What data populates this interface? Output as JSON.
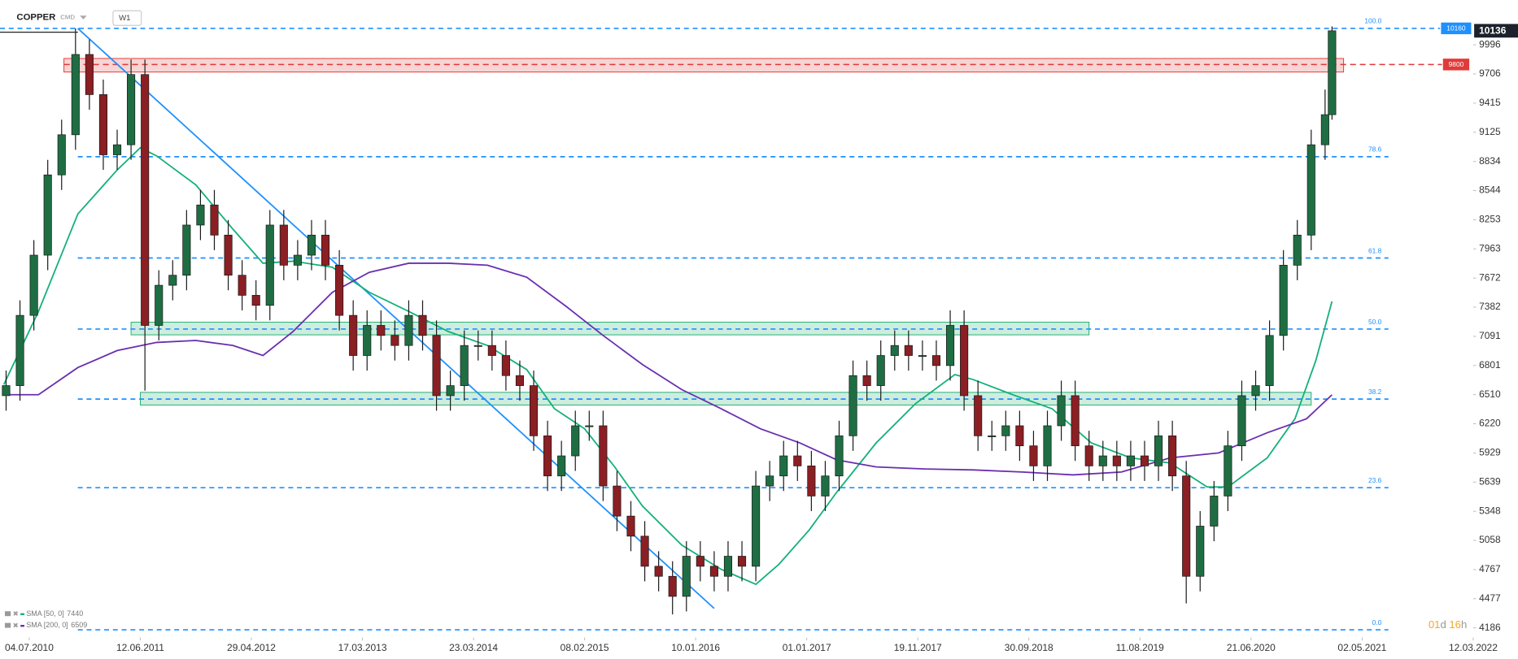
{
  "chart_data": {
    "type": "candlestick",
    "title": "COPPER",
    "subtitle": "CMD",
    "timeframe": "W1",
    "x": [
      -10,
      -4,
      2,
      8,
      14,
      20,
      26,
      32,
      38,
      44,
      50,
      56,
      62,
      68,
      74,
      80,
      86,
      92,
      98,
      104,
      110,
      116,
      122,
      128,
      134,
      140,
      146,
      152,
      158,
      164,
      170,
      176,
      182,
      188,
      194,
      200,
      206,
      212,
      218,
      224,
      230,
      236,
      242,
      248,
      254,
      260,
      266,
      272,
      278,
      284,
      290,
      296,
      302,
      308,
      314,
      320,
      326,
      332,
      338,
      344,
      350,
      356,
      362,
      368,
      374,
      380,
      386,
      392,
      398,
      404,
      410,
      416,
      422,
      428,
      434,
      440,
      446,
      452,
      458,
      464,
      470,
      476,
      482,
      488,
      494,
      500,
      506,
      512,
      518,
      524,
      530,
      536,
      542,
      548,
      554,
      560,
      563
    ],
    "open": [
      6500,
      6600,
      7300,
      7900,
      8700,
      9100,
      9900,
      9500,
      8900,
      9000,
      9700,
      7200,
      7600,
      7700,
      8200,
      8400,
      8100,
      7700,
      7500,
      7400,
      8200,
      7800,
      7900,
      8100,
      7800,
      7300,
      6900,
      7200,
      7100,
      7000,
      7300,
      7100,
      6500,
      6600,
      7000,
      7000,
      6900,
      6700,
      6600,
      6100,
      5700,
      5900,
      6200,
      6200,
      5600,
      5300,
      5100,
      4800,
      4700,
      4500,
      4900,
      4800,
      4700,
      4900,
      4800,
      5600,
      5700,
      5900,
      5800,
      5500,
      5700,
      6100,
      6700,
      6600,
      6900,
      7000,
      6900,
      6900,
      6800,
      7200,
      6500,
      6100,
      6100,
      6200,
      6000,
      5800,
      6200,
      6500,
      6000,
      5800,
      5900,
      5800,
      5900,
      5800,
      6100,
      5700,
      4700,
      5200,
      5500,
      6000,
      6500,
      6600,
      7100,
      7800,
      8100,
      9000,
      9300
    ],
    "high": [
      6750,
      7450,
      8050,
      8850,
      9250,
      10160,
      10050,
      9650,
      9150,
      9850,
      9850,
      7750,
      7850,
      8350,
      8550,
      8550,
      8250,
      7850,
      7650,
      8350,
      8350,
      8050,
      8250,
      8250,
      7950,
      7450,
      7350,
      7350,
      7250,
      7450,
      7450,
      7250,
      6750,
      7150,
      7150,
      7150,
      7050,
      6850,
      6750,
      6250,
      6050,
      6350,
      6350,
      6350,
      5750,
      5450,
      5250,
      4950,
      4850,
      5050,
      5050,
      4950,
      5050,
      5050,
      5750,
      5850,
      6050,
      6050,
      5950,
      5850,
      6250,
      6850,
      6850,
      7050,
      7150,
      7150,
      7050,
      7050,
      7350,
      7350,
      6650,
      6250,
      6350,
      6350,
      6150,
      6350,
      6650,
      6650,
      6150,
      6050,
      6050,
      6050,
      6050,
      6250,
      6250,
      5850,
      5350,
      5650,
      6150,
      6650,
      6750,
      7250,
      7950,
      8250,
      9150,
      9550,
      10180
    ],
    "low": [
      6350,
      6450,
      7150,
      7750,
      8550,
      8950,
      9350,
      8750,
      8750,
      8850,
      6550,
      7050,
      7450,
      7550,
      8050,
      7950,
      7550,
      7350,
      7250,
      7250,
      7650,
      7650,
      7750,
      7650,
      7150,
      6750,
      6750,
      6950,
      6850,
      6850,
      6950,
      6350,
      6350,
      6450,
      6850,
      6750,
      6550,
      6450,
      5950,
      5550,
      5550,
      5750,
      6050,
      5450,
      5150,
      4950,
      4650,
      4550,
      4320,
      4350,
      4650,
      4550,
      4550,
      4650,
      4650,
      5450,
      5550,
      5650,
      5350,
      5350,
      5550,
      5950,
      6450,
      6450,
      6750,
      6750,
      6750,
      6650,
      6650,
      6350,
      5950,
      5950,
      5950,
      5850,
      5650,
      5650,
      6050,
      5850,
      5650,
      5650,
      5650,
      5650,
      5650,
      5650,
      5550,
      4430,
      4550,
      5050,
      5350,
      5850,
      6350,
      6450,
      6950,
      7650,
      7950,
      8850,
      9250
    ],
    "close": [
      6600,
      7300,
      7900,
      8700,
      9100,
      9900,
      9500,
      8900,
      9000,
      9700,
      7200,
      7600,
      7700,
      8200,
      8400,
      8100,
      7700,
      7500,
      7400,
      8200,
      7800,
      7900,
      8100,
      7800,
      7300,
      6900,
      7200,
      7100,
      7000,
      7300,
      7100,
      6500,
      6600,
      7000,
      7000,
      6900,
      6700,
      6600,
      6100,
      5700,
      5900,
      6200,
      6200,
      5600,
      5300,
      5100,
      4800,
      4700,
      4500,
      4900,
      4800,
      4700,
      4900,
      4800,
      5600,
      5700,
      5900,
      5800,
      5500,
      5700,
      6100,
      6700,
      6600,
      6900,
      7000,
      6900,
      6900,
      6800,
      7200,
      6500,
      6100,
      6100,
      6200,
      6000,
      5800,
      6200,
      6500,
      6000,
      5800,
      5900,
      5800,
      5900,
      5800,
      6100,
      5700,
      4700,
      5200,
      5500,
      6000,
      6500,
      6600,
      7100,
      7800,
      8100,
      9000,
      9300,
      10136
    ],
    "up_color": "#1f6e43",
    "down_color": "#8a1f24",
    "xlim": [
      -12,
      624
    ],
    "xticks": [
      {
        "value": 0,
        "label": "04.07.2010"
      },
      {
        "value": 48,
        "label": "12.06.2011"
      },
      {
        "value": 96,
        "label": "29.04.2012"
      },
      {
        "value": 144,
        "label": "17.03.2013"
      },
      {
        "value": 192,
        "label": "23.03.2014"
      },
      {
        "value": 240,
        "label": "08.02.2015"
      },
      {
        "value": 288,
        "label": "10.01.2016"
      },
      {
        "value": 336,
        "label": "01.01.2017"
      },
      {
        "value": 384,
        "label": "19.11.2017"
      },
      {
        "value": 432,
        "label": "30.09.2018"
      },
      {
        "value": 480,
        "label": "11.08.2019"
      },
      {
        "value": 528,
        "label": "21.06.2020"
      },
      {
        "value": 576,
        "label": "02.05.2021"
      },
      {
        "value": 624,
        "label": "12.03.2022"
      }
    ],
    "ylim": [
      4090,
      10345
    ],
    "yticks": [
      9996,
      9706,
      9415,
      9125,
      8834,
      8544,
      8253,
      7963,
      7672,
      7382,
      7091,
      6801,
      6510,
      6220,
      5929,
      5639,
      5348,
      5058,
      4767,
      4477,
      4186
    ],
    "grid": false,
    "series": [
      {
        "name": "SMA [50, 0]",
        "color": "#13b07a",
        "x": [
          -11,
          4,
          21,
          38,
          48,
          55,
          72,
          88,
          101,
          114,
          131,
          147,
          164,
          181,
          198,
          215,
          227,
          240,
          253,
          265,
          282,
          299,
          314,
          324,
          337,
          349,
          366,
          383,
          400,
          408,
          425,
          442,
          459,
          476,
          493,
          509,
          518,
          535,
          547,
          556,
          563
        ],
        "values": [
          6610,
          7340,
          8310,
          8750,
          8970,
          8890,
          8600,
          8160,
          7820,
          7840,
          7780,
          7530,
          7340,
          7140,
          7000,
          6760,
          6370,
          6170,
          5790,
          5400,
          5010,
          4770,
          4620,
          4820,
          5160,
          5540,
          6030,
          6420,
          6710,
          6660,
          6510,
          6370,
          6030,
          5880,
          5830,
          5590,
          5590,
          5880,
          6270,
          6850,
          7440
        ]
      },
      {
        "name": "SMA [200, 0]",
        "color": "#6a2fb0",
        "x": [
          -11,
          4,
          21,
          38,
          55,
          72,
          88,
          101,
          114,
          131,
          147,
          164,
          181,
          198,
          215,
          232,
          248,
          265,
          282,
          299,
          316,
          333,
          349,
          366,
          387,
          408,
          429,
          451,
          472,
          493,
          514,
          535,
          552,
          563
        ],
        "values": [
          6510,
          6510,
          6780,
          6950,
          7030,
          7050,
          7000,
          6900,
          7140,
          7530,
          7730,
          7820,
          7820,
          7800,
          7680,
          7390,
          7100,
          6810,
          6560,
          6370,
          6170,
          6030,
          5860,
          5790,
          5770,
          5760,
          5740,
          5710,
          5740,
          5880,
          5930,
          6130,
          6270,
          6509
        ]
      }
    ],
    "fib": {
      "color": "#1e90ff",
      "levels": [
        {
          "label": "100.0",
          "value": 10160
        },
        {
          "label": "78.6",
          "value": 8881
        },
        {
          "label": "61.8",
          "value": 7872
        },
        {
          "label": "50.0",
          "value": 7164
        },
        {
          "label": "38.2",
          "value": 6466
        },
        {
          "label": "23.6",
          "value": 5583
        },
        {
          "label": "0.0",
          "value": 4167
        }
      ]
    },
    "level": {
      "value": 9800,
      "color": "#e03a3a"
    },
    "zones": [
      {
        "color": "#e03a3a",
        "x": [
          15,
          568
        ],
        "y": [
          9725,
          9860
        ]
      },
      {
        "color": "#1fae6e",
        "x": [
          44,
          458
        ],
        "y": [
          7106,
          7232
        ]
      },
      {
        "color": "#1fae6e",
        "x": [
          48,
          554
        ],
        "y": [
          6407,
          6533
        ]
      }
    ],
    "trendline": {
      "color": "#1e90ff",
      "x": [
        21,
        296
      ],
      "y": [
        10160,
        4380
      ]
    },
    "countdown": [
      "01",
      "d",
      "16",
      "h"
    ]
  }
}
